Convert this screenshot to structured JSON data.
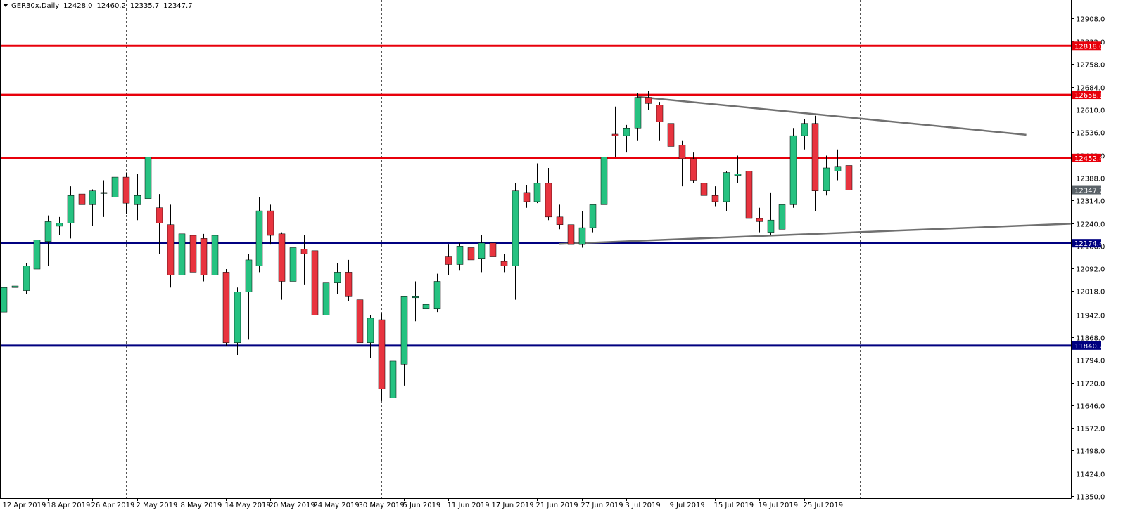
{
  "header": {
    "symbol": "GER30x,Daily",
    "open": "12428.0",
    "high": "12460.2",
    "low": "12335.7",
    "close": "12347.7"
  },
  "colors": {
    "bull": "#26c281",
    "bear": "#e8343f",
    "resistance": "#e8000b",
    "support": "#000080",
    "trendline": "#707070",
    "current_price_tag": "#5a6268"
  },
  "chart_data": {
    "type": "candlestick",
    "ylim": [
      11350,
      12950
    ],
    "y_ticks": [
      "12908.0",
      "12832.0",
      "12758.0",
      "12684.0",
      "12610.0",
      "12536.0",
      "12462.0",
      "12388.0",
      "12314.0",
      "12240.0",
      "12166.0",
      "12092.0",
      "12018.0",
      "11942.0",
      "11868.0",
      "11794.0",
      "11720.0",
      "11646.0",
      "11572.0",
      "11498.0",
      "11424.0",
      "11350.0"
    ],
    "x_labels": [
      {
        "i": 0,
        "text": "12 Apr 2019"
      },
      {
        "i": 4,
        "text": "18 Apr 2019"
      },
      {
        "i": 8,
        "text": "26 Apr 2019"
      },
      {
        "i": 12,
        "text": "2 May 2019"
      },
      {
        "i": 16,
        "text": "8 May 2019"
      },
      {
        "i": 20,
        "text": "14 May 2019"
      },
      {
        "i": 24,
        "text": "20 May 2019"
      },
      {
        "i": 28,
        "text": "24 May 2019"
      },
      {
        "i": 32,
        "text": "30 May 2019"
      },
      {
        "i": 36,
        "text": "5 Jun 2019"
      },
      {
        "i": 40,
        "text": "11 Jun 2019"
      },
      {
        "i": 44,
        "text": "17 Jun 2019"
      },
      {
        "i": 48,
        "text": "21 Jun 2019"
      },
      {
        "i": 52,
        "text": "27 Jun 2019"
      },
      {
        "i": 56,
        "text": "3 Jul 2019"
      },
      {
        "i": 60,
        "text": "9 Jul 2019"
      },
      {
        "i": 64,
        "text": "15 Jul 2019"
      },
      {
        "i": 68,
        "text": "19 Jul 2019"
      },
      {
        "i": 72,
        "text": "25 Jul 2019"
      }
    ],
    "period_separators": [
      11,
      34,
      54,
      77
    ],
    "candles": [
      {
        "o": 11950,
        "h": 12050,
        "l": 11880,
        "c": 12030
      },
      {
        "o": 12030,
        "h": 12070,
        "l": 11985,
        "c": 12035
      },
      {
        "o": 12020,
        "h": 12110,
        "l": 12010,
        "c": 12100
      },
      {
        "o": 12090,
        "h": 12195,
        "l": 12075,
        "c": 12185
      },
      {
        "o": 12180,
        "h": 12265,
        "l": 12100,
        "c": 12245
      },
      {
        "o": 12230,
        "h": 12260,
        "l": 12200,
        "c": 12240
      },
      {
        "o": 12240,
        "h": 12360,
        "l": 12190,
        "c": 12330
      },
      {
        "o": 12335,
        "h": 12355,
        "l": 12240,
        "c": 12300
      },
      {
        "o": 12300,
        "h": 12350,
        "l": 12230,
        "c": 12345
      },
      {
        "o": 12340,
        "h": 12380,
        "l": 12260,
        "c": 12340
      },
      {
        "o": 12325,
        "h": 12395,
        "l": 12240,
        "c": 12390
      },
      {
        "o": 12390,
        "h": 12405,
        "l": 12270,
        "c": 12305
      },
      {
        "o": 12300,
        "h": 12400,
        "l": 12250,
        "c": 12330
      },
      {
        "o": 12320,
        "h": 12460,
        "l": 12310,
        "c": 12455
      },
      {
        "o": 12290,
        "h": 12335,
        "l": 12140,
        "c": 12240
      },
      {
        "o": 12235,
        "h": 12300,
        "l": 12030,
        "c": 12070
      },
      {
        "o": 12070,
        "h": 12230,
        "l": 12060,
        "c": 12205
      },
      {
        "o": 12200,
        "h": 12240,
        "l": 11970,
        "c": 12080
      },
      {
        "o": 12190,
        "h": 12205,
        "l": 12050,
        "c": 12070
      },
      {
        "o": 12070,
        "h": 12190,
        "l": 12070,
        "c": 12200
      },
      {
        "o": 12080,
        "h": 12090,
        "l": 11840,
        "c": 11850
      },
      {
        "o": 11850,
        "h": 12030,
        "l": 11810,
        "c": 12015
      },
      {
        "o": 12015,
        "h": 12140,
        "l": 11860,
        "c": 12120
      },
      {
        "o": 12100,
        "h": 12325,
        "l": 12080,
        "c": 12280
      },
      {
        "o": 12280,
        "h": 12300,
        "l": 12170,
        "c": 12200
      },
      {
        "o": 12205,
        "h": 12210,
        "l": 11990,
        "c": 12050
      },
      {
        "o": 12050,
        "h": 12165,
        "l": 12040,
        "c": 12160
      },
      {
        "o": 12155,
        "h": 12200,
        "l": 12040,
        "c": 12140
      },
      {
        "o": 12150,
        "h": 12155,
        "l": 11920,
        "c": 11940
      },
      {
        "o": 11940,
        "h": 12060,
        "l": 11925,
        "c": 12045
      },
      {
        "o": 12045,
        "h": 12110,
        "l": 12010,
        "c": 12080
      },
      {
        "o": 12080,
        "h": 12120,
        "l": 11985,
        "c": 12000
      },
      {
        "o": 11990,
        "h": 12020,
        "l": 11810,
        "c": 11850
      },
      {
        "o": 11850,
        "h": 11940,
        "l": 11800,
        "c": 11930
      },
      {
        "o": 11925,
        "h": 11945,
        "l": 11660,
        "c": 11700
      },
      {
        "o": 11670,
        "h": 11800,
        "l": 11600,
        "c": 11790
      },
      {
        "o": 11780,
        "h": 12000,
        "l": 11710,
        "c": 12000
      },
      {
        "o": 12000,
        "h": 12050,
        "l": 11920,
        "c": 12000
      },
      {
        "o": 11960,
        "h": 12020,
        "l": 11895,
        "c": 11975
      },
      {
        "o": 11960,
        "h": 12075,
        "l": 11950,
        "c": 12050
      },
      {
        "o": 12130,
        "h": 12170,
        "l": 12070,
        "c": 12105
      },
      {
        "o": 12105,
        "h": 12175,
        "l": 12085,
        "c": 12165
      },
      {
        "o": 12160,
        "h": 12230,
        "l": 12080,
        "c": 12120
      },
      {
        "o": 12125,
        "h": 12200,
        "l": 12080,
        "c": 12175
      },
      {
        "o": 12175,
        "h": 12195,
        "l": 12080,
        "c": 12130
      },
      {
        "o": 12115,
        "h": 12140,
        "l": 12080,
        "c": 12100
      },
      {
        "o": 12100,
        "h": 12370,
        "l": 11990,
        "c": 12345
      },
      {
        "o": 12340,
        "h": 12365,
        "l": 12290,
        "c": 12310
      },
      {
        "o": 12310,
        "h": 12435,
        "l": 12305,
        "c": 12370
      },
      {
        "o": 12370,
        "h": 12420,
        "l": 12250,
        "c": 12260
      },
      {
        "o": 12260,
        "h": 12300,
        "l": 12220,
        "c": 12235
      },
      {
        "o": 12235,
        "h": 12280,
        "l": 12170,
        "c": 12170
      },
      {
        "o": 12170,
        "h": 12280,
        "l": 12160,
        "c": 12225
      },
      {
        "o": 12225,
        "h": 12295,
        "l": 12210,
        "c": 12300
      },
      {
        "o": 12300,
        "h": 12460,
        "l": 12280,
        "c": 12455
      },
      {
        "o": 12530,
        "h": 12620,
        "l": 12455,
        "c": 12525
      },
      {
        "o": 12525,
        "h": 12560,
        "l": 12470,
        "c": 12550
      },
      {
        "o": 12550,
        "h": 12665,
        "l": 12510,
        "c": 12650
      },
      {
        "o": 12650,
        "h": 12670,
        "l": 12610,
        "c": 12630
      },
      {
        "o": 12625,
        "h": 12635,
        "l": 12510,
        "c": 12570
      },
      {
        "o": 12565,
        "h": 12590,
        "l": 12480,
        "c": 12490
      },
      {
        "o": 12495,
        "h": 12510,
        "l": 12360,
        "c": 12450
      },
      {
        "o": 12450,
        "h": 12470,
        "l": 12370,
        "c": 12380
      },
      {
        "o": 12370,
        "h": 12385,
        "l": 12290,
        "c": 12330
      },
      {
        "o": 12330,
        "h": 12360,
        "l": 12295,
        "c": 12310
      },
      {
        "o": 12310,
        "h": 12410,
        "l": 12280,
        "c": 12405
      },
      {
        "o": 12395,
        "h": 12460,
        "l": 12370,
        "c": 12400
      },
      {
        "o": 12410,
        "h": 12445,
        "l": 12255,
        "c": 12255
      },
      {
        "o": 12255,
        "h": 12290,
        "l": 12210,
        "c": 12245
      },
      {
        "o": 12210,
        "h": 12340,
        "l": 12200,
        "c": 12250
      },
      {
        "o": 12220,
        "h": 12350,
        "l": 12220,
        "c": 12300
      },
      {
        "o": 12300,
        "h": 12550,
        "l": 12290,
        "c": 12525
      },
      {
        "o": 12525,
        "h": 12580,
        "l": 12480,
        "c": 12565
      },
      {
        "o": 12565,
        "h": 12590,
        "l": 12280,
        "c": 12345
      },
      {
        "o": 12345,
        "h": 12460,
        "l": 12330,
        "c": 12420
      },
      {
        "o": 12410,
        "h": 12480,
        "l": 12380,
        "c": 12425
      },
      {
        "o": 12428,
        "h": 12460.2,
        "l": 12335.7,
        "c": 12347.7
      }
    ],
    "horizontal_levels": [
      {
        "price": 12818.0,
        "label": "12818.0",
        "kind": "resistance"
      },
      {
        "price": 12658.1,
        "label": "12658.1",
        "kind": "resistance"
      },
      {
        "price": 12452.4,
        "label": "12452.4",
        "kind": "resistance"
      },
      {
        "price": 12174.4,
        "label": "12174.4",
        "kind": "support"
      },
      {
        "price": 11840.7,
        "label": "11840.7",
        "kind": "support"
      }
    ],
    "current_price": {
      "price": 12347.7,
      "label": "12347.7"
    },
    "trendlines": [
      {
        "from": {
          "i": 57,
          "p": 12652
        },
        "to": {
          "i": 92,
          "p": 12528
        }
      },
      {
        "from": {
          "i": 50,
          "p": 12172
        },
        "to": {
          "i": 96,
          "p": 12238
        }
      }
    ]
  }
}
